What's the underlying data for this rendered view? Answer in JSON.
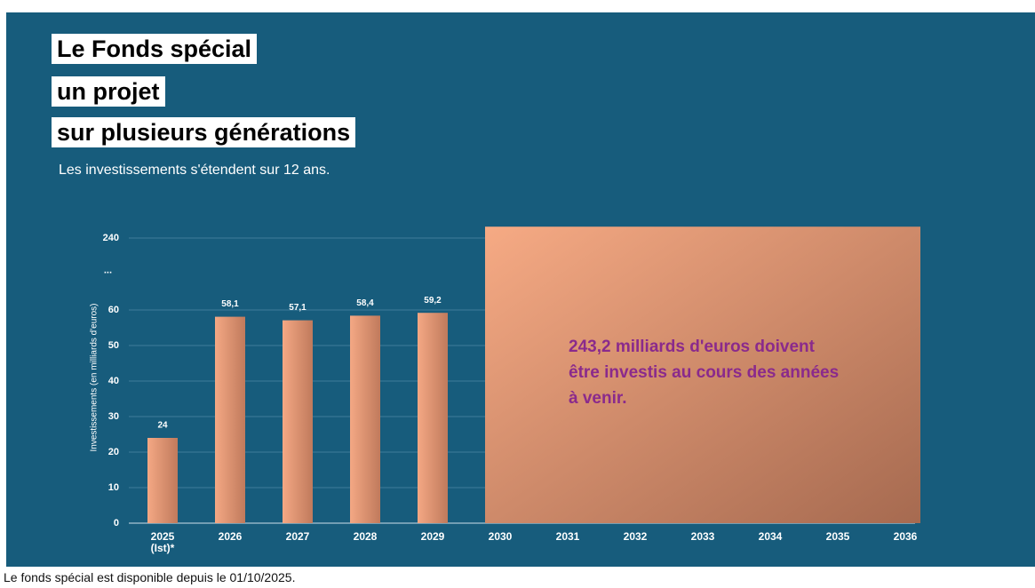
{
  "header": {
    "title_lines": [
      "Le Fonds spécial",
      "un projet",
      "sur plusieurs générations"
    ],
    "subtitle": "Les investissements s'étendent sur 12 ans."
  },
  "chart_data": {
    "type": "bar",
    "y_label": "Investissements (en milliards d'euros)",
    "categories": [
      "2025 (Ist)*",
      "2026",
      "2027",
      "2028",
      "2029",
      "2030",
      "2031",
      "2032",
      "2033",
      "2034",
      "2035",
      "2036"
    ],
    "values": [
      24,
      58.1,
      57.1,
      58.4,
      59.2,
      null,
      null,
      null,
      null,
      null,
      null,
      null
    ],
    "value_labels": [
      "24",
      "58,1",
      "57,1",
      "58,4",
      "59,2",
      null,
      null,
      null,
      null,
      null,
      null,
      null
    ],
    "ylim": [
      0,
      245
    ],
    "yticks": [
      0,
      10,
      20,
      30,
      40,
      50,
      60,
      240
    ],
    "axis_break": {
      "from": 60,
      "to": 240,
      "label": "..."
    },
    "total": {
      "value": 243.2,
      "from": "2030",
      "to": "2036",
      "label": "243,2 milliards d'euros doivent être investis au cours des années à venir."
    },
    "grid": true
  },
  "footnote": "Le fonds spécial est disponible depuis le 01/10/2025."
}
